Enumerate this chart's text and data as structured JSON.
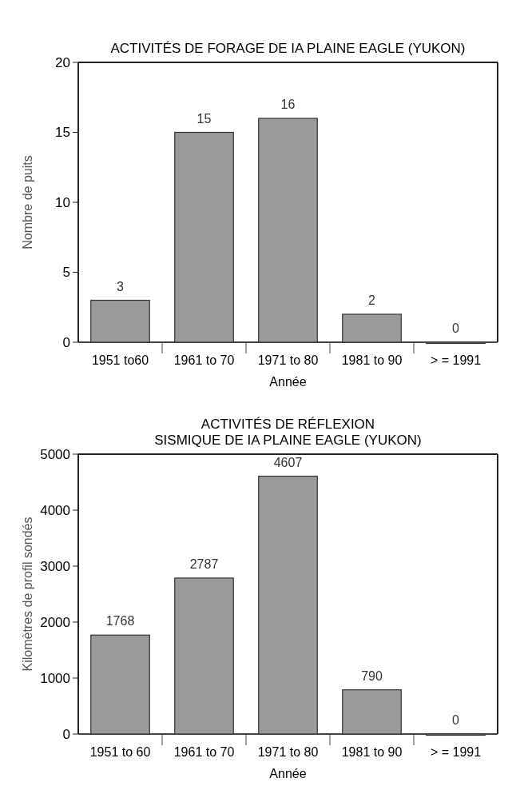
{
  "chart_data": [
    {
      "type": "bar",
      "title": "ACTIVITÉS DE FORAGE DE IA PLAINE EAGLE (YUKON)",
      "xlabel": "Année",
      "ylabel": "Nombre de puits",
      "categories": [
        "1951 to60",
        "1961 to 70",
        "1971 to 80",
        "1981 to 90",
        "> = 1991"
      ],
      "values": [
        3,
        15,
        16,
        2,
        0
      ],
      "color": "#9a9a9a",
      "ylim": [
        0,
        20
      ],
      "yticks": [
        0,
        5,
        10,
        15,
        20
      ],
      "data_labels": true,
      "grid": false
    },
    {
      "type": "bar",
      "title": "ACTIVITÉS DE RÉFLEXION\nSISMIQUE DE IA PLAINE EAGLE (YUKON)",
      "xlabel": "Année",
      "ylabel": "Kilomètres de profil sondés",
      "categories": [
        "1951 to 60",
        "1961 to 70",
        "1971 to 80",
        "1981 to 90",
        "> = 1991"
      ],
      "values": [
        1768,
        2787,
        4607,
        790,
        0
      ],
      "color": "#9a9a9a",
      "ylim": [
        0,
        5000
      ],
      "yticks": [
        0,
        1000,
        2000,
        3000,
        4000,
        5000
      ],
      "data_labels": true,
      "grid": false
    }
  ]
}
